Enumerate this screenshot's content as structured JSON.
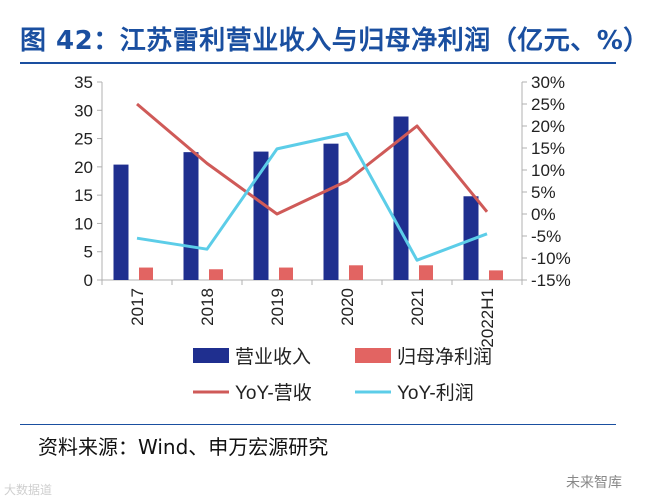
{
  "header": {
    "title": "图 42：江苏雷利营业收入与归母净利润（亿元、%）"
  },
  "footer": {
    "source": "资料来源：Wind、申万宏源研究",
    "watermark_left": "大数据道",
    "watermark_right": "未来智库"
  },
  "colors": {
    "revenue_bar": "#1f2f8f",
    "profit_bar": "#e26462",
    "yoy_revenue": "#cf5a58",
    "yoy_profit": "#5ccde8",
    "axis": "#b0b0b0",
    "title": "#1a4fa0"
  },
  "chart_data": {
    "type": "bar",
    "categories": [
      "2017",
      "2018",
      "2019",
      "2020",
      "2021",
      "2022H1"
    ],
    "y_left": {
      "ylim": [
        0,
        35
      ],
      "ticks": [
        "0",
        "5",
        "10",
        "15",
        "20",
        "25",
        "30",
        "35"
      ]
    },
    "y_right": {
      "ylim": [
        -15,
        30
      ],
      "ticks": [
        "-15%",
        "-10%",
        "-5%",
        "0%",
        "5%",
        "10%",
        "15%",
        "20%",
        "25%",
        "30%"
      ]
    },
    "series": [
      {
        "name": "营业收入",
        "type": "bar",
        "axis": "left",
        "values": [
          20.4,
          22.6,
          22.7,
          24.1,
          28.9,
          14.8
        ]
      },
      {
        "name": "归母净利润",
        "type": "bar",
        "axis": "left",
        "values": [
          2.2,
          1.9,
          2.2,
          2.6,
          2.6,
          1.7
        ]
      },
      {
        "name": "YoY-营收",
        "type": "line",
        "axis": "right",
        "values": [
          25.0,
          11.5,
          0.0,
          7.5,
          20.0,
          0.5
        ]
      },
      {
        "name": "YoY-利润",
        "type": "line",
        "axis": "right",
        "values": [
          -5.5,
          -8.0,
          14.8,
          18.3,
          -10.5,
          -4.5
        ]
      }
    ],
    "legend_position": "bottom",
    "grid": false
  }
}
